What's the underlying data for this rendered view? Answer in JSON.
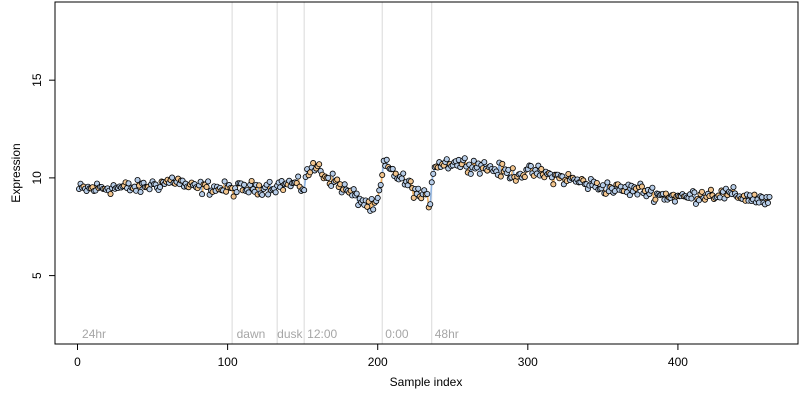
{
  "chart_data": {
    "type": "scatter",
    "xlabel": "Sample index",
    "ylabel": "Expression",
    "xlim": [
      -15,
      480
    ],
    "ylim": [
      1.5,
      19
    ],
    "x_ticks": [
      0,
      100,
      200,
      300,
      400
    ],
    "y_ticks": [
      5,
      10,
      15
    ],
    "grid": false,
    "colors": {
      "point_fill": "#b7cde8",
      "point_fill_alt": "#f2c58e",
      "point_stroke": "#000000",
      "segment_blue": "#8fb3e0",
      "segment_orange": "#f0b060",
      "vline": "#d9d9d9",
      "annotation": "#a6a6a6"
    },
    "vlines": [
      103,
      133,
      151,
      203,
      236
    ],
    "annotations": [
      {
        "text": "24hr",
        "x": 3
      },
      {
        "text": "dawn",
        "x": 106
      },
      {
        "text": "dusk",
        "x": 133
      },
      {
        "text": "12:00",
        "x": 153
      },
      {
        "text": "0:00",
        "x": 205
      },
      {
        "text": "48hr",
        "x": 238
      }
    ],
    "trend_knots": [
      [
        1,
        9.4
      ],
      [
        20,
        9.5
      ],
      [
        40,
        9.5
      ],
      [
        55,
        9.7
      ],
      [
        65,
        9.9
      ],
      [
        75,
        9.5
      ],
      [
        90,
        9.5
      ],
      [
        103,
        9.4
      ],
      [
        120,
        9.5
      ],
      [
        133,
        9.6
      ],
      [
        143,
        9.7
      ],
      [
        151,
        9.5
      ],
      [
        152,
        10.2
      ],
      [
        160,
        10.6
      ],
      [
        165,
        10.1
      ],
      [
        172,
        9.8
      ],
      [
        180,
        9.3
      ],
      [
        190,
        8.8
      ],
      [
        198,
        8.4
      ],
      [
        202,
        9.5
      ],
      [
        204,
        10.7
      ],
      [
        210,
        10.3
      ],
      [
        220,
        9.7
      ],
      [
        228,
        9.1
      ],
      [
        235,
        8.8
      ],
      [
        236,
        9.9
      ],
      [
        238,
        10.7
      ],
      [
        250,
        10.8
      ],
      [
        262,
        10.7
      ],
      [
        275,
        10.5
      ],
      [
        290,
        10.2
      ],
      [
        305,
        10.3
      ],
      [
        315,
        10.1
      ],
      [
        330,
        9.9
      ],
      [
        345,
        9.6
      ],
      [
        360,
        9.4
      ],
      [
        375,
        9.4
      ],
      [
        390,
        9.1
      ],
      [
        405,
        9.0
      ],
      [
        420,
        9.2
      ],
      [
        440,
        9.1
      ],
      [
        455,
        8.9
      ],
      [
        461,
        8.7
      ]
    ],
    "n_points": 461
  }
}
